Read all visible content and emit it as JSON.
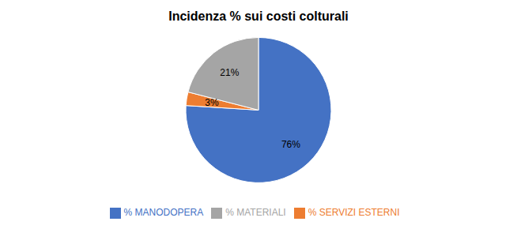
{
  "chart_data": {
    "type": "pie",
    "title": "Incidenza % sui costi colturali",
    "categories": [
      "% MANODOPERA",
      "% SERVIZI ESTERNI",
      "% MATERIALI"
    ],
    "values": [
      76,
      3,
      21
    ],
    "value_labels": [
      "76%",
      "3%",
      "21%"
    ],
    "colors": [
      "#4472C4",
      "#ED7D31",
      "#A5A5A5"
    ],
    "data_labels": true,
    "legend": "bottom"
  }
}
